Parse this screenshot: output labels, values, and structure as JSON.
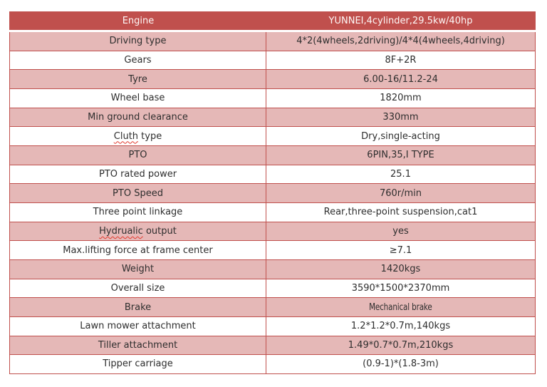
{
  "table": {
    "title_row": {
      "label": "Engine",
      "value": "YUNNEI,4cylinder,29.5kw/40hp"
    },
    "rows": [
      {
        "label": "Driving type",
        "value": "4*2(4wheels,2driving)/4*4(4wheels,4driving)"
      },
      {
        "label": "Gears",
        "value": "8F+2R"
      },
      {
        "label": "Tyre",
        "value": "6.00-16/11.2-24"
      },
      {
        "label": "Wheel base",
        "value": "1820mm"
      },
      {
        "label": "Min ground clearance",
        "value": "330mm"
      },
      {
        "label_misspelled": "Cluth",
        "label_rest": " type",
        "value": "Dry,single-acting"
      },
      {
        "label": "PTO",
        "value": "6PIN,35,I TYPE"
      },
      {
        "label": "PTO rated power",
        "value": "25.1"
      },
      {
        "label": "PTO Speed",
        "value": "760r/min"
      },
      {
        "label": "Three point linkage",
        "value": "Rear,three-point suspension,cat1"
      },
      {
        "label_misspelled": "Hydrualic",
        "label_rest": " output",
        "value": "yes"
      },
      {
        "label": "Max.lifting force at frame center",
        "value": "≥7.1"
      },
      {
        "label": "Weight",
        "value": "1420kgs"
      },
      {
        "label": "Overall size",
        "value": "3590*1500*2370mm"
      },
      {
        "label": "Brake",
        "value": "Mechanical brake"
      },
      {
        "label": "Lawn mower attachment",
        "value": "1.2*1.2*0.7m,140kgs"
      },
      {
        "label": "Tiller attachment",
        "value": "1.49*0.7*0.7m,210kgs"
      },
      {
        "label": "Tipper carriage",
        "value": "(0.9-1)*(1.8-3m)"
      }
    ],
    "colors": {
      "header_bg": "#c0504d",
      "header_text": "#fdf7f6",
      "alt_row_bg": "#e5b8b7",
      "border": "#c0504d",
      "squiggle": "#e23a2e",
      "body_text": "#2e2e2e"
    }
  }
}
